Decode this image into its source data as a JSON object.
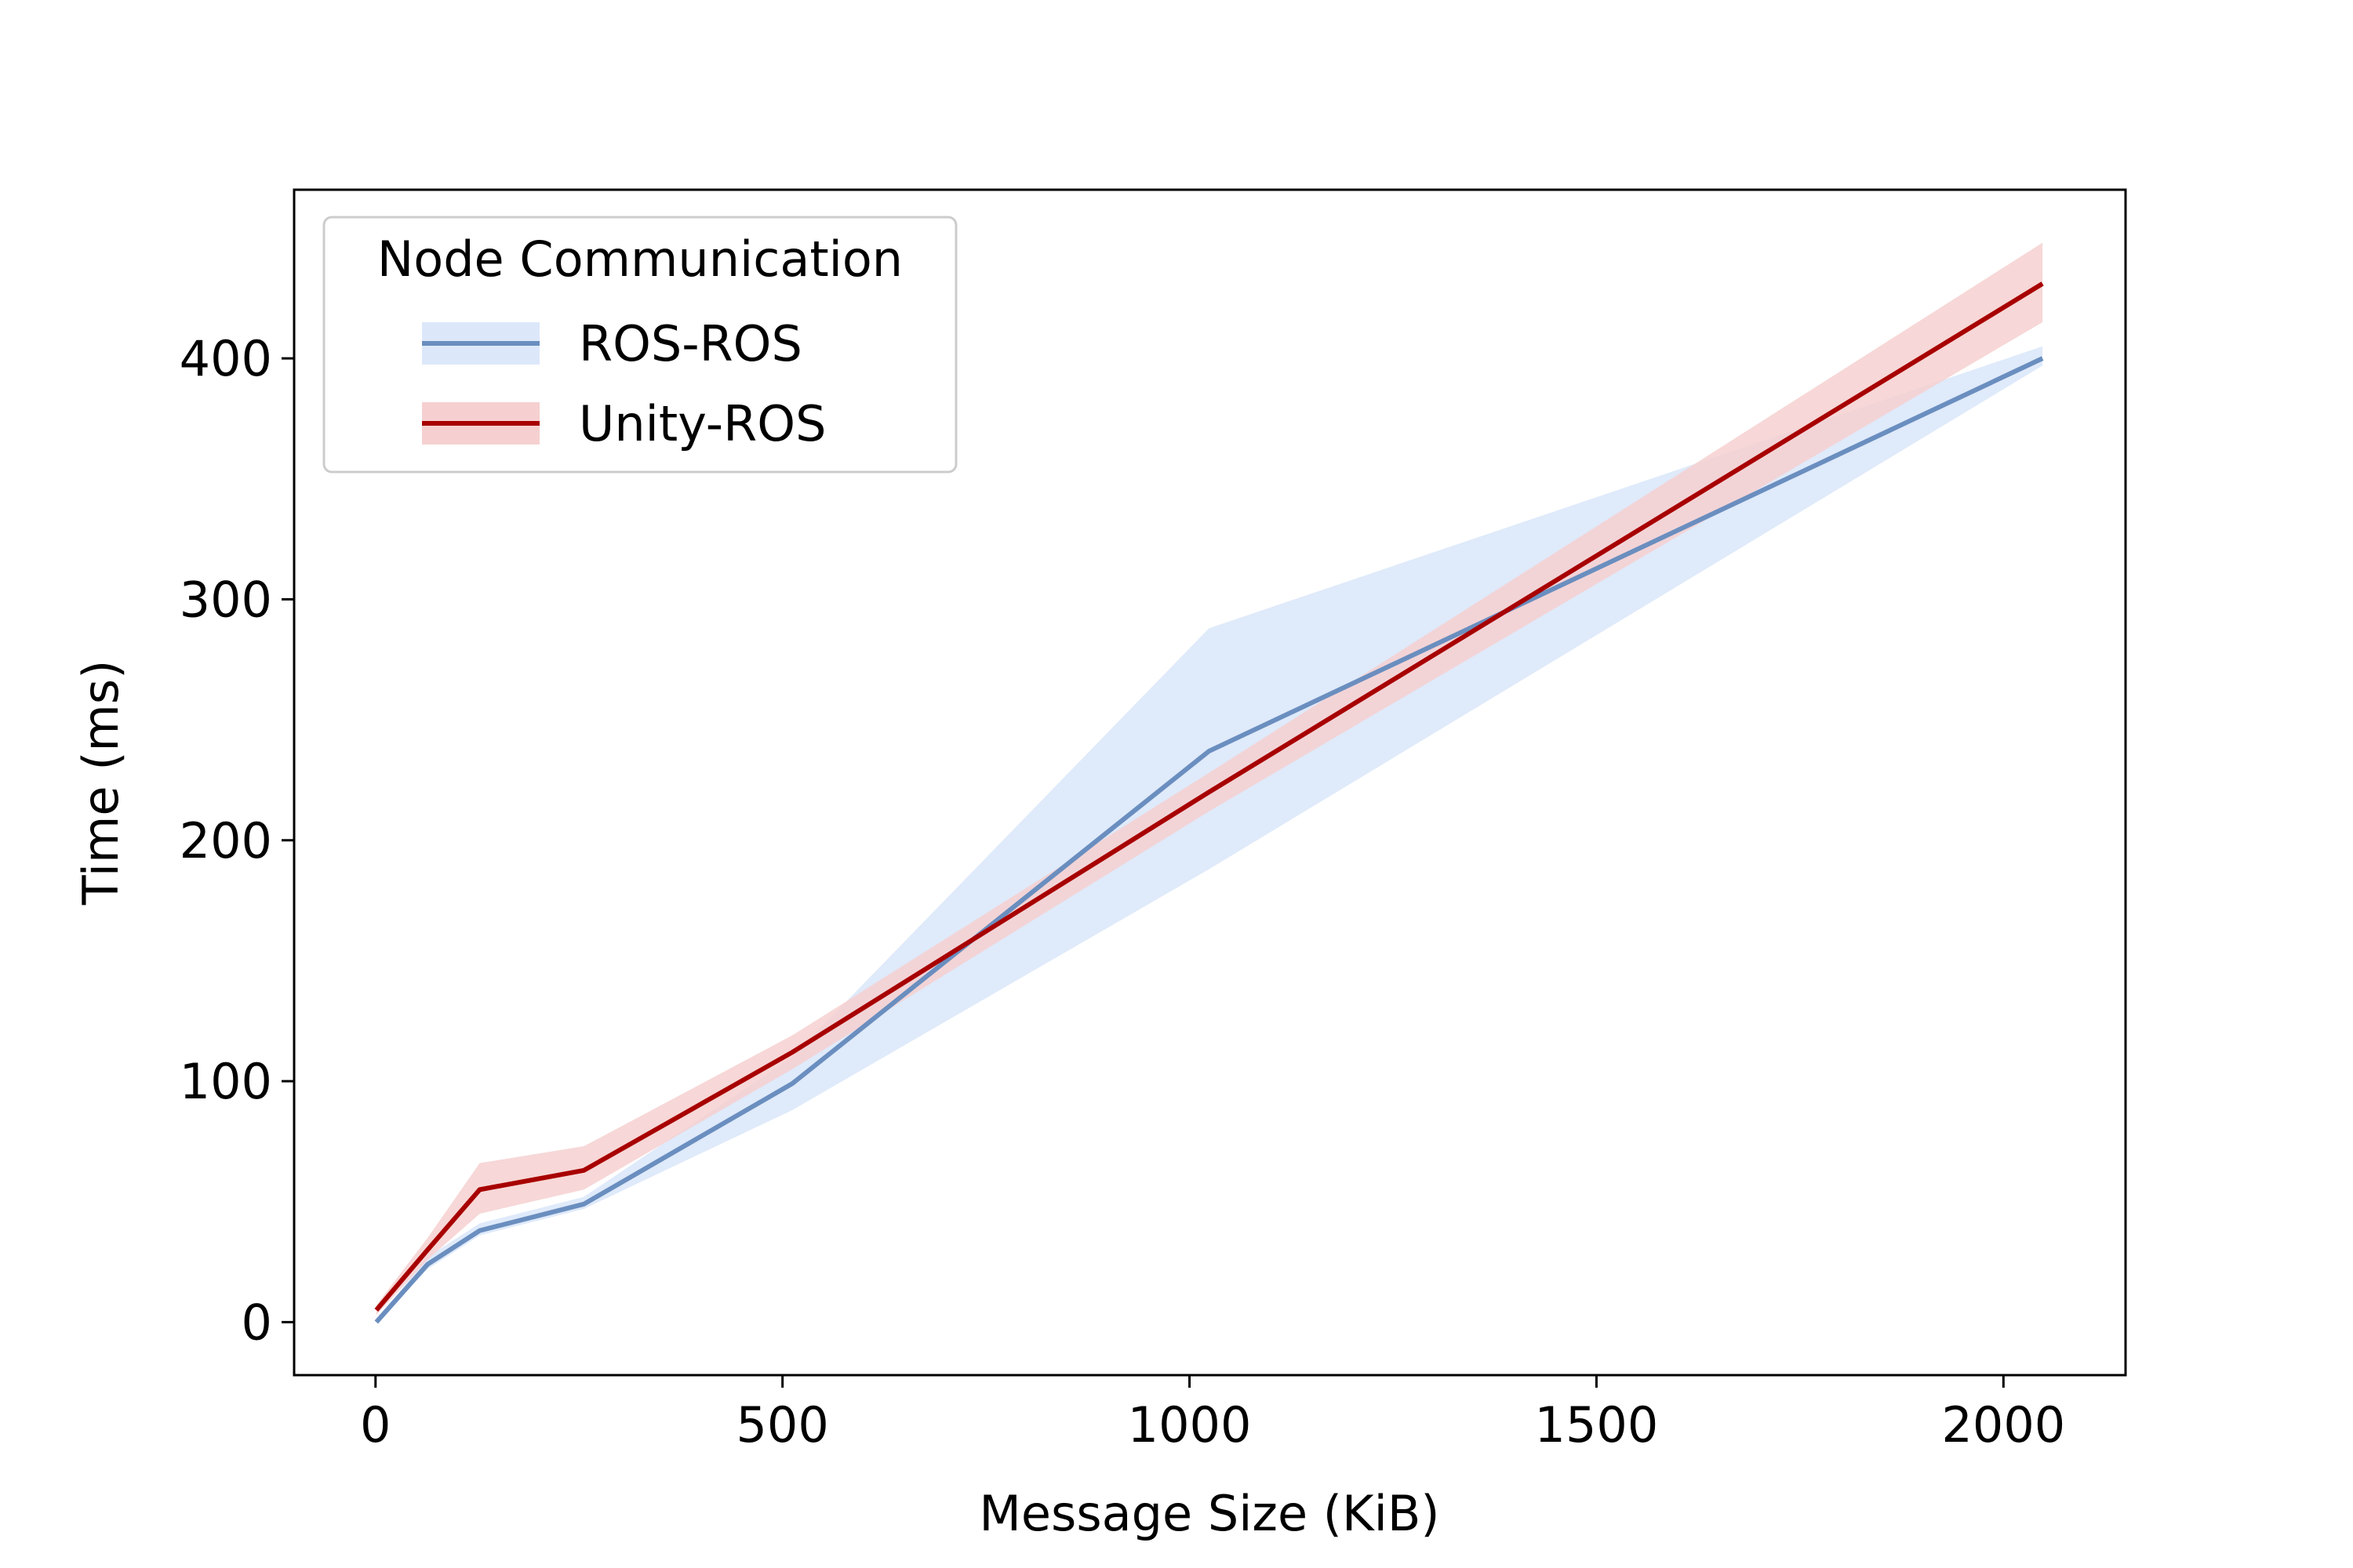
{
  "chart_data": {
    "type": "line",
    "xlabel": "Message Size (KiB)",
    "ylabel": "Time (ms)",
    "xlim": [
      -100,
      2150
    ],
    "ylim": [
      -22,
      470
    ],
    "xticks": [
      0,
      500,
      1000,
      1500,
      2000
    ],
    "yticks": [
      0,
      100,
      200,
      300,
      400
    ],
    "grid": false,
    "legend": {
      "title": "Node Communication",
      "placement": "top-left"
    },
    "series": [
      {
        "name": "ROS-ROS",
        "color": "#6a8ebf",
        "band_color": "#dce8fa",
        "x": [
          1,
          64,
          128,
          256,
          512,
          1024,
          2048
        ],
        "y": [
          0,
          24,
          38,
          49,
          99,
          237,
          400
        ],
        "lower": [
          0,
          22,
          36,
          47,
          88,
          188,
          397
        ],
        "upper": [
          1,
          27,
          41,
          52,
          110,
          288,
          405
        ]
      },
      {
        "name": "Unity-ROS",
        "color": "#a80000",
        "band_color": "#f6d0d0",
        "x": [
          1,
          64,
          128,
          256,
          512,
          1024,
          2048
        ],
        "y": [
          5,
          30,
          55,
          63,
          112,
          220,
          431
        ],
        "lower": [
          3,
          26,
          45,
          55,
          105,
          212,
          415
        ],
        "upper": [
          7,
          35,
          66,
          73,
          119,
          228,
          448
        ]
      }
    ]
  }
}
